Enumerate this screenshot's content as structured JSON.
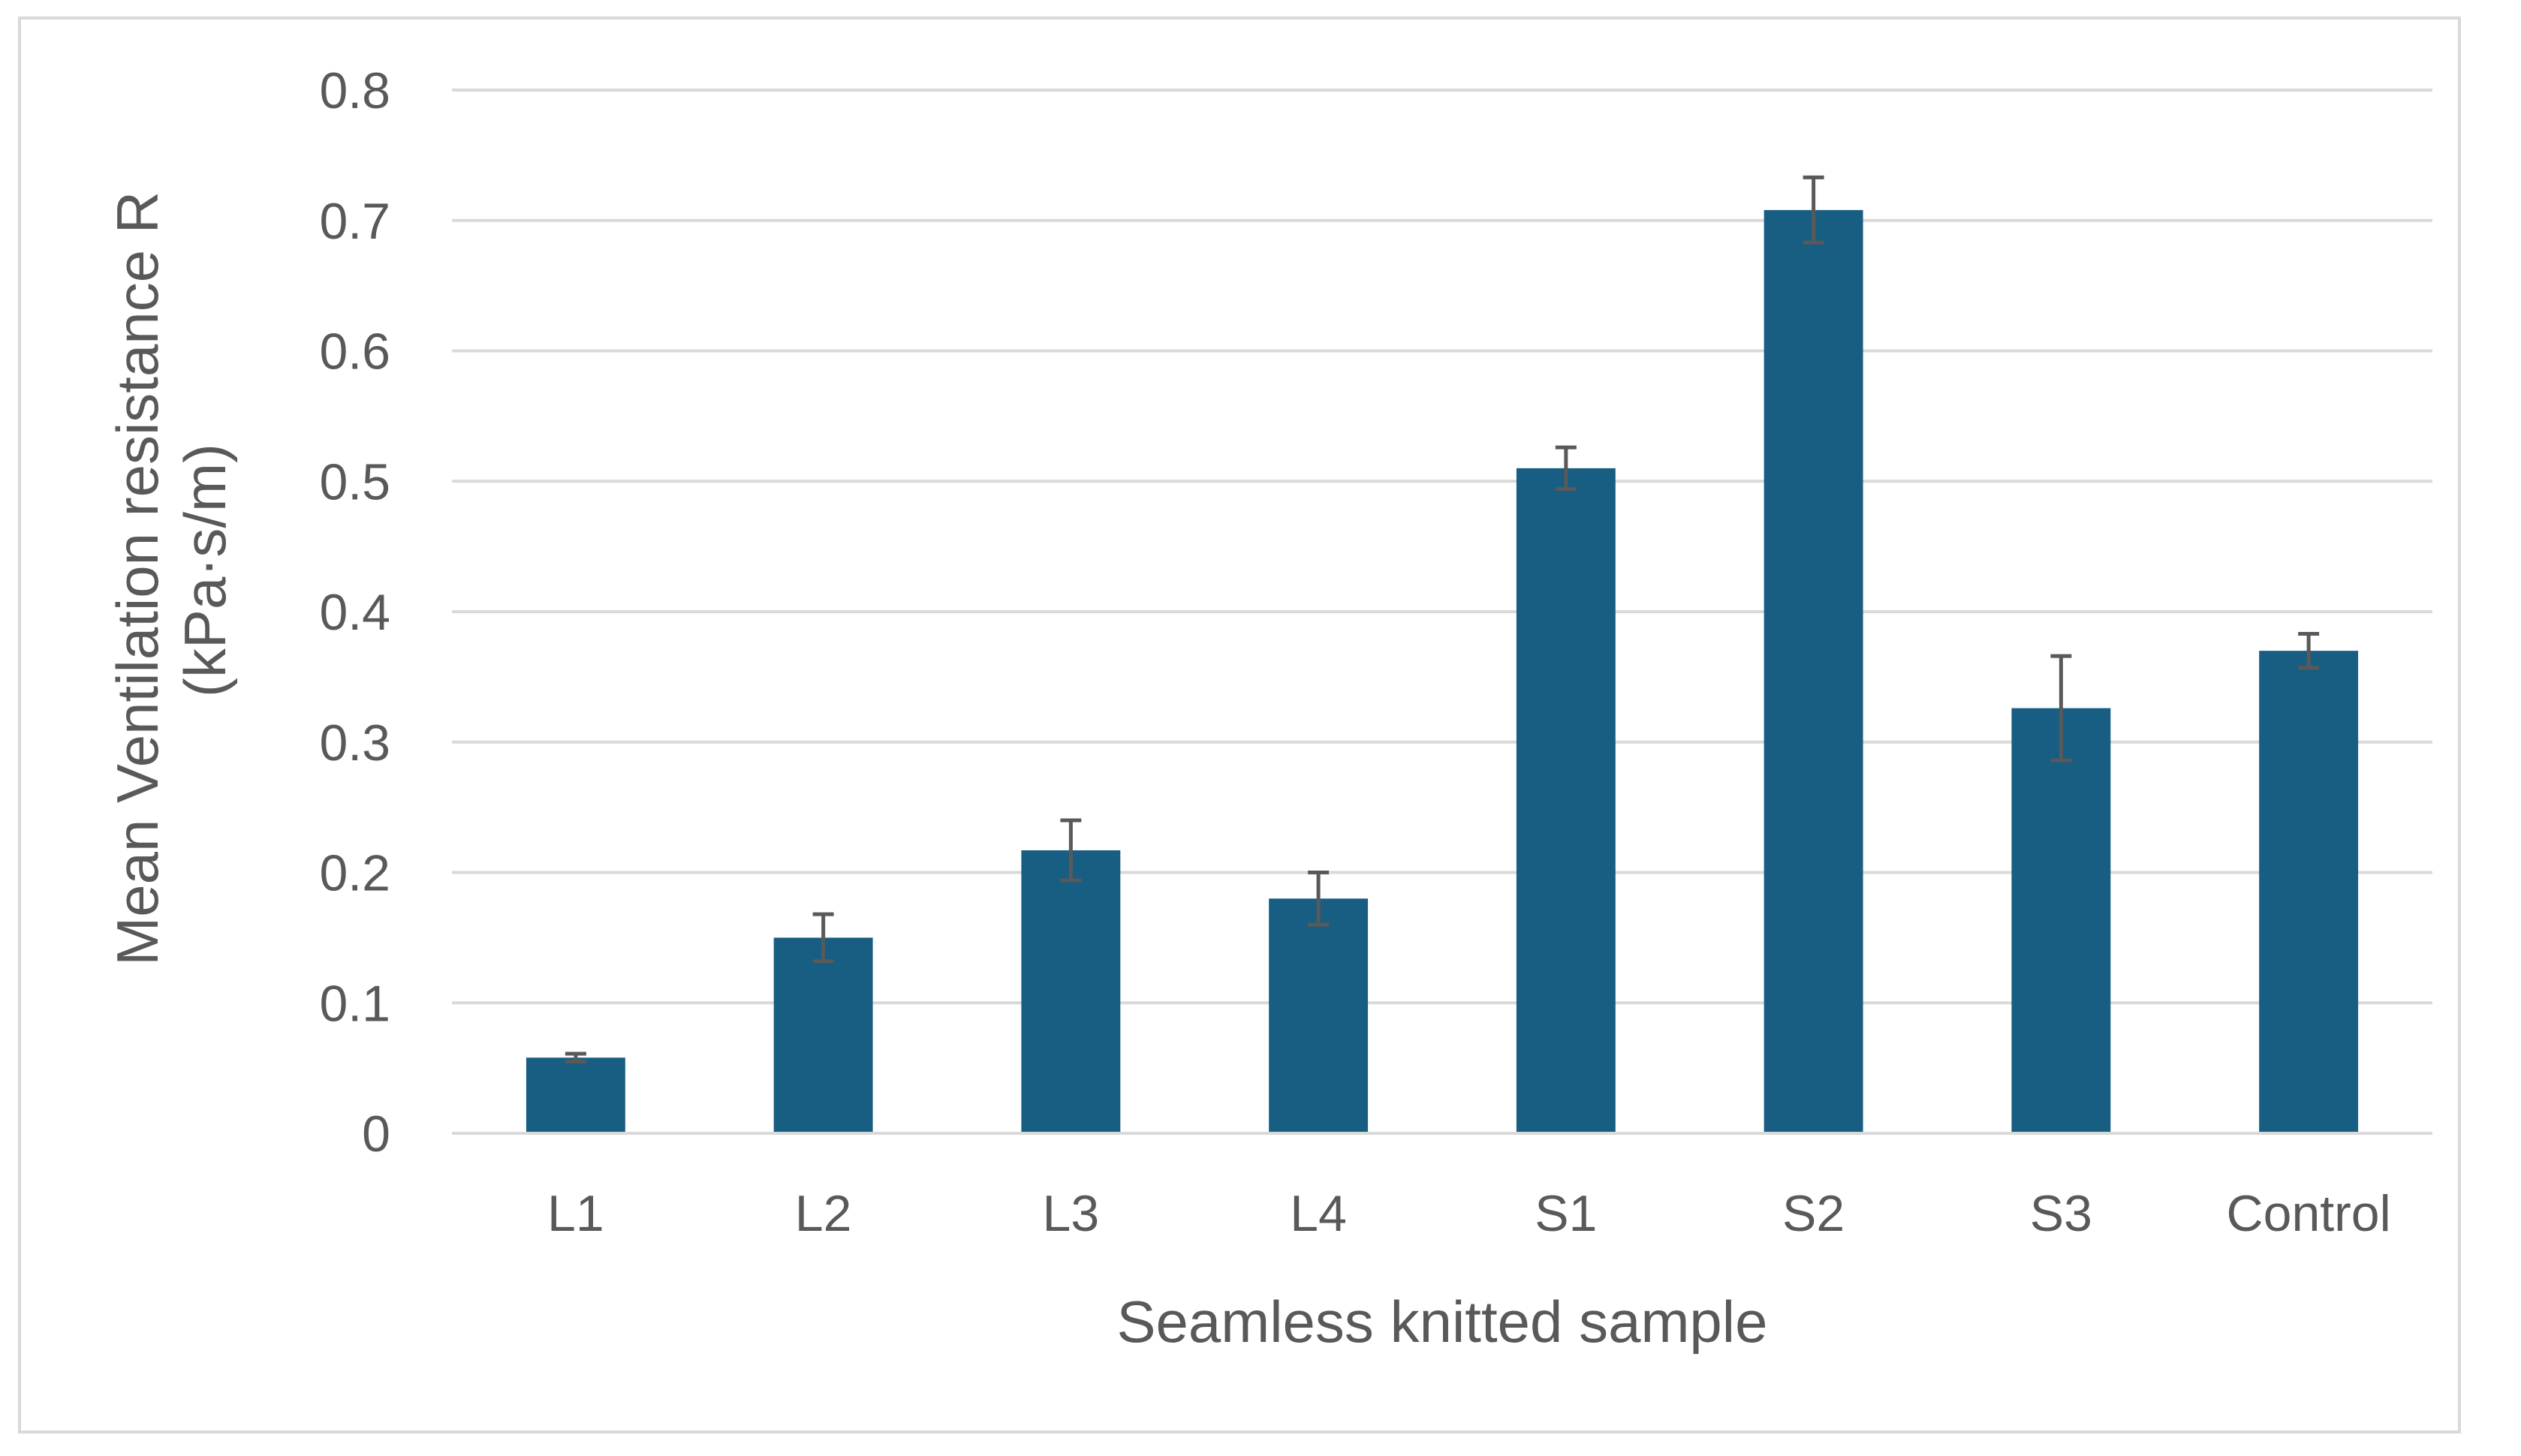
{
  "chart_data": {
    "type": "bar",
    "title": "",
    "xlabel": "Seamless knitted sample",
    "ylabel": [
      "Mean Ventilation resistance R",
      "(kPa·s/m)"
    ],
    "categories": [
      "L1",
      "L2",
      "L3",
      "L4",
      "S1",
      "S2",
      "S3",
      "Control"
    ],
    "values": [
      0.058,
      0.15,
      0.217,
      0.18,
      0.51,
      0.708,
      0.326,
      0.37
    ],
    "error": [
      0.003,
      0.018,
      0.023,
      0.02,
      0.016,
      0.025,
      0.04,
      0.013
    ],
    "ylim": [
      0,
      0.8
    ],
    "yticks": [
      "0",
      "0.1",
      "0.2",
      "0.3",
      "0.4",
      "0.5",
      "0.6",
      "0.7",
      "0.8"
    ],
    "bar_color": "#175E82",
    "error_bar_color": "#595959",
    "grid": true,
    "legend": "none"
  }
}
